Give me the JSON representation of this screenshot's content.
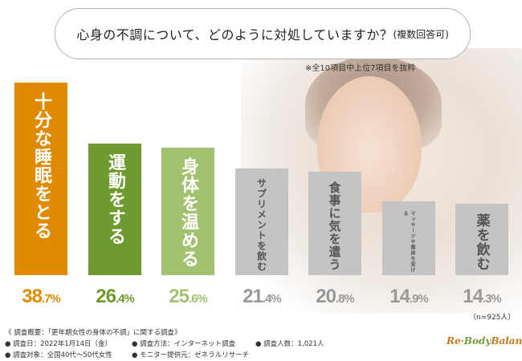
{
  "title": "心身の不調について、どのように対処していますか？",
  "title_suffix": "(複数回答可)",
  "note": "※全10項目中上位7項目を抜粋",
  "sample_note": "（n=925人）",
  "chart_data": {
    "type": "bar",
    "categories": [
      "十分な睡眠をとる",
      "運動をする",
      "身体を温める",
      "サプリメントを飲む",
      "食事に気を遣う",
      "マッサージや整体を受ける",
      "薬を飲む"
    ],
    "values": [
      38.7,
      26.4,
      25.6,
      21.4,
      20.8,
      14.9,
      14.3
    ],
    "value_labels": [
      {
        "int": "38",
        "dec": ".7%"
      },
      {
        "int": "26",
        "dec": ".4%"
      },
      {
        "int": "25",
        "dec": ".6%"
      },
      {
        "int": "21",
        "dec": ".4%"
      },
      {
        "int": "20",
        "dec": ".8%"
      },
      {
        "int": "14",
        "dec": ".9%"
      },
      {
        "int": "14",
        "dec": ".3%"
      }
    ],
    "colors": [
      "#e08a00",
      "#6f9a2f",
      "#a3c270",
      "#c4c4c4",
      "#c4c4c4",
      "#c4c4c4",
      "#c4c4c4"
    ],
    "label_colors": [
      "#ffffff",
      "#ffffff",
      "#ffffff",
      "#555555",
      "#555555",
      "#555555",
      "#555555"
    ],
    "value_colors": [
      "#e08a00",
      "#6f9a2f",
      "#a3c270",
      "#999999",
      "#999999",
      "#999999",
      "#999999"
    ],
    "ylim": [
      0,
      40
    ],
    "unit": "%"
  },
  "footer": {
    "line1": "《 調査概要：「更年期女性の身体の不調」に関する調査》",
    "date": "● 調査日：2022年1月14日（金）",
    "method": "● 調査方法：インターネット調査",
    "people": "● 調査人数：1,021人",
    "target": "● 調査対象：全国40代～50代女性",
    "provider": "● モニター提供元：ゼネラルリサーチ"
  },
  "logo": {
    "prefix": "Re",
    "leaf": "Body",
    "suffix": "Balance"
  }
}
